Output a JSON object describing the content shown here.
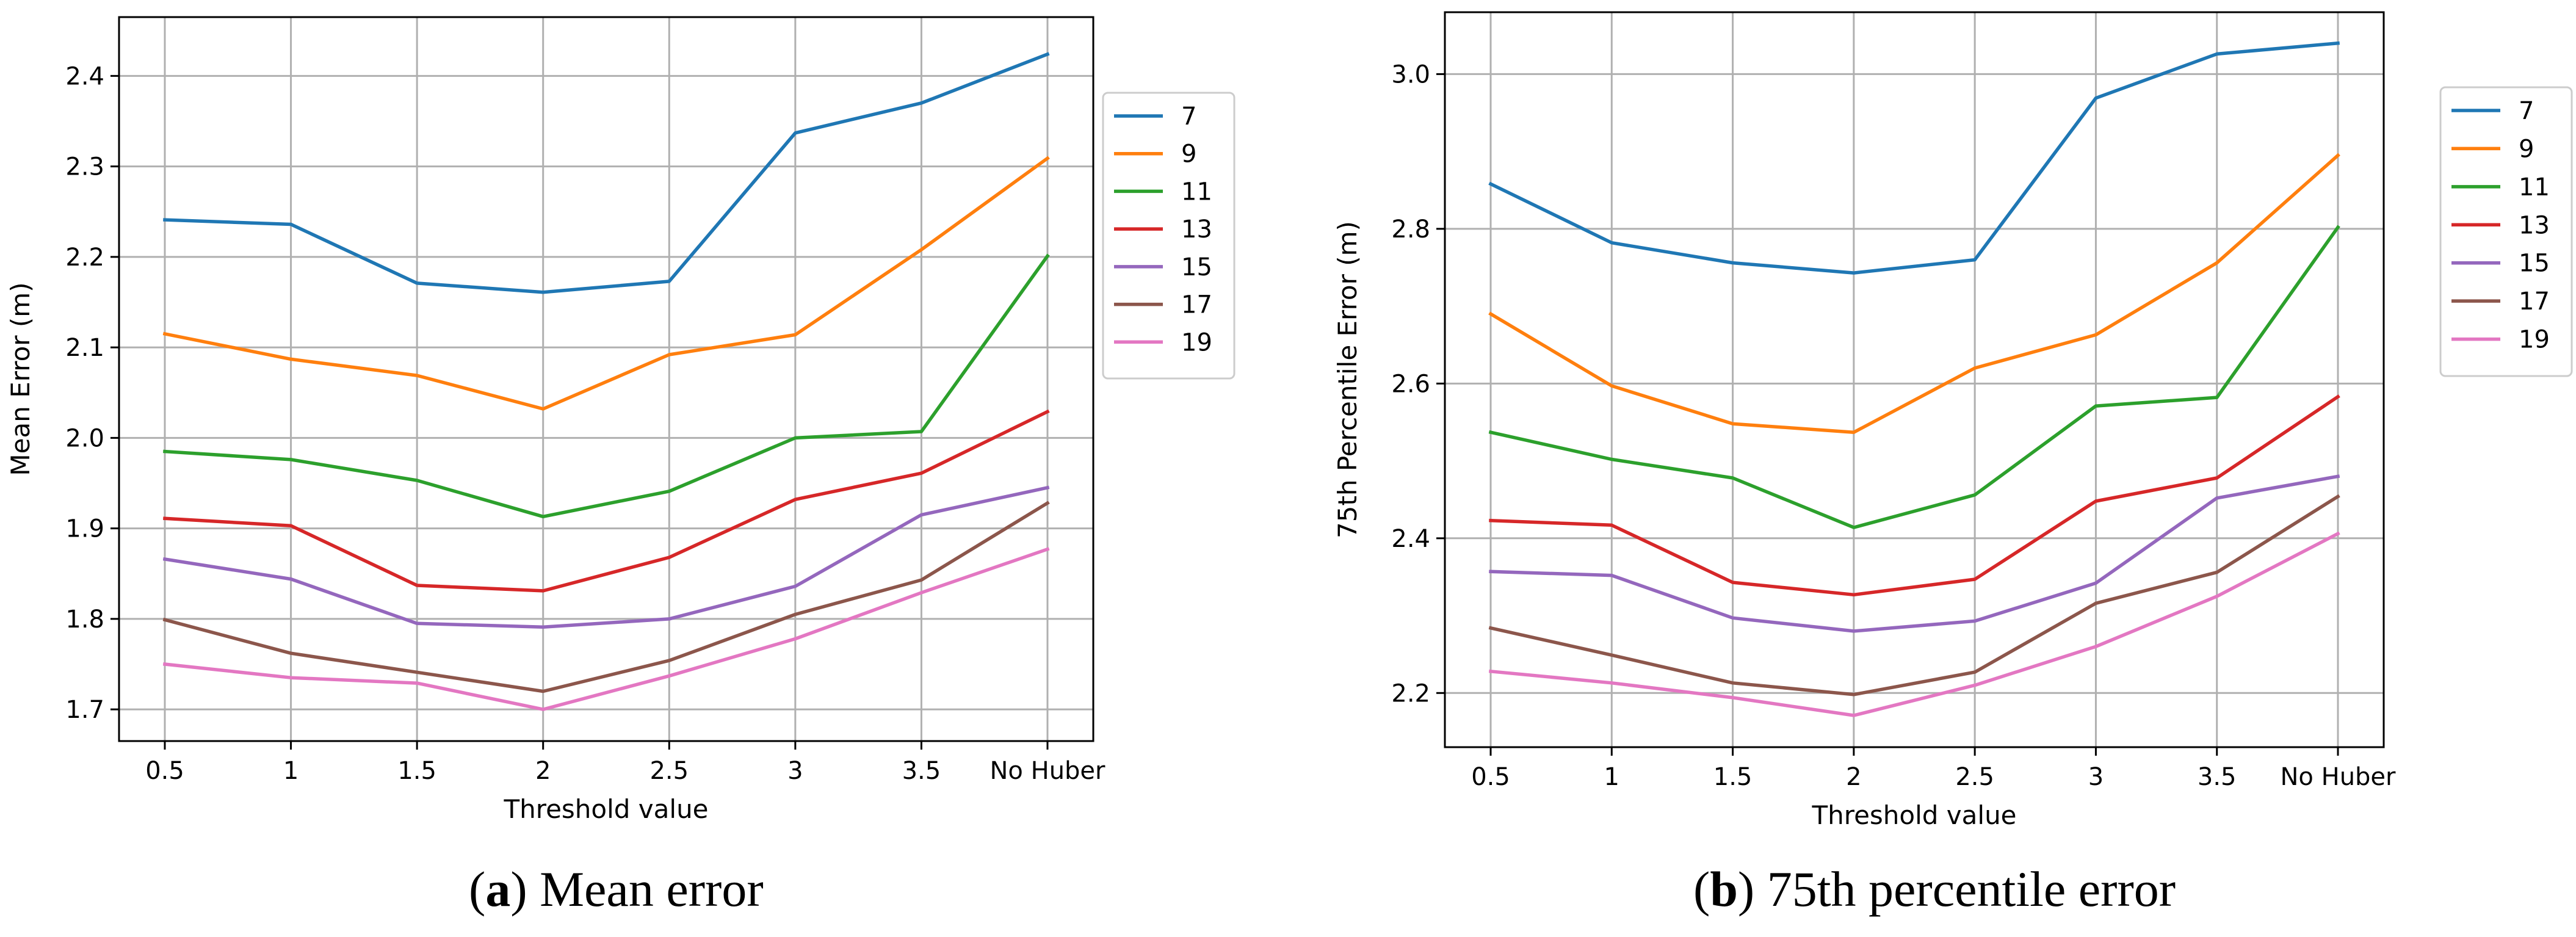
{
  "chart_data": [
    {
      "type": "line",
      "panel": "a",
      "xlabel": "Threshold value",
      "ylabel": "Mean Error (m)",
      "categories": [
        "0.5",
        "1",
        "1.5",
        "2",
        "2.5",
        "3",
        "3.5",
        "No Huber"
      ],
      "ylim": [
        1.665,
        2.465
      ],
      "yticks": [
        "1.7",
        "1.8",
        "1.9",
        "2.0",
        "2.1",
        "2.2",
        "2.3",
        "2.4"
      ],
      "grid": true,
      "legend_position": "outside-right",
      "series": [
        {
          "name": "7",
          "color": "#1f77b4",
          "values": [
            2.241,
            2.236,
            2.171,
            2.161,
            2.173,
            2.337,
            2.37,
            2.424
          ]
        },
        {
          "name": "9",
          "color": "#ff7f0e",
          "values": [
            2.115,
            2.087,
            2.069,
            2.032,
            2.092,
            2.114,
            2.208,
            2.309
          ]
        },
        {
          "name": "11",
          "color": "#2ca02c",
          "values": [
            1.985,
            1.976,
            1.953,
            1.913,
            1.941,
            2.0,
            2.007,
            2.201
          ]
        },
        {
          "name": "13",
          "color": "#d62728",
          "values": [
            1.911,
            1.903,
            1.837,
            1.831,
            1.868,
            1.932,
            1.961,
            2.029
          ]
        },
        {
          "name": "15",
          "color": "#9467bd",
          "values": [
            1.866,
            1.844,
            1.795,
            1.791,
            1.8,
            1.836,
            1.915,
            1.945
          ]
        },
        {
          "name": "17",
          "color": "#8c564b",
          "values": [
            1.799,
            1.762,
            1.741,
            1.72,
            1.754,
            1.805,
            1.843,
            1.928
          ]
        },
        {
          "name": "19",
          "color": "#e377c2",
          "values": [
            1.75,
            1.735,
            1.729,
            1.7,
            1.737,
            1.778,
            1.829,
            1.877
          ]
        }
      ]
    },
    {
      "type": "line",
      "panel": "b",
      "xlabel": "Threshold value",
      "ylabel": "75th Percentile Error (m)",
      "categories": [
        "0.5",
        "1",
        "1.5",
        "2",
        "2.5",
        "3",
        "3.5",
        "No Huber"
      ],
      "ylim": [
        2.13,
        3.08
      ],
      "yticks": [
        "2.2",
        "2.4",
        "2.6",
        "2.8",
        "3.0"
      ],
      "grid": true,
      "legend_position": "outside-right",
      "series": [
        {
          "name": "7",
          "color": "#1f77b4",
          "values": [
            2.858,
            2.782,
            2.756,
            2.743,
            2.76,
            2.969,
            3.026,
            3.04
          ]
        },
        {
          "name": "9",
          "color": "#ff7f0e",
          "values": [
            2.69,
            2.597,
            2.548,
            2.537,
            2.62,
            2.663,
            2.756,
            2.895
          ]
        },
        {
          "name": "11",
          "color": "#2ca02c",
          "values": [
            2.537,
            2.502,
            2.478,
            2.414,
            2.456,
            2.571,
            2.582,
            2.802
          ]
        },
        {
          "name": "13",
          "color": "#d62728",
          "values": [
            2.423,
            2.417,
            2.343,
            2.327,
            2.347,
            2.448,
            2.478,
            2.583
          ]
        },
        {
          "name": "15",
          "color": "#9467bd",
          "values": [
            2.357,
            2.352,
            2.297,
            2.28,
            2.293,
            2.342,
            2.452,
            2.48
          ]
        },
        {
          "name": "17",
          "color": "#8c564b",
          "values": [
            2.284,
            2.249,
            2.213,
            2.198,
            2.227,
            2.316,
            2.356,
            2.454
          ]
        },
        {
          "name": "19",
          "color": "#e377c2",
          "values": [
            2.228,
            2.213,
            2.194,
            2.171,
            2.21,
            2.26,
            2.325,
            2.406
          ]
        }
      ]
    }
  ],
  "captions": [
    {
      "label": "a",
      "text": "Mean error"
    },
    {
      "label": "b",
      "text": "75th percentile error"
    }
  ]
}
